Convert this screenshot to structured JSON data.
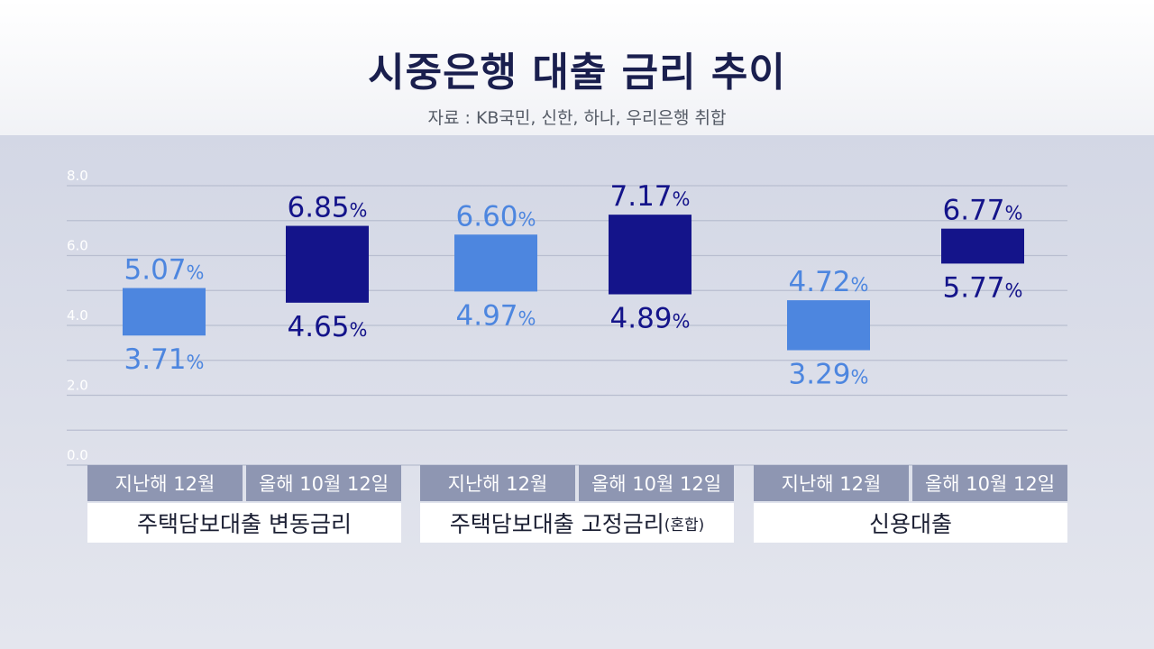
{
  "title": "시중은행 대출 금리 추이",
  "source": "자료 : KB국민, 신한, 하나, 우리은행 취합",
  "colors": {
    "light": "#4d86df",
    "dark": "#14148a"
  },
  "chart_data": {
    "type": "floating-bar",
    "ylim": [
      0,
      8
    ],
    "yticks": [
      "0.0",
      "2.0",
      "4.0",
      "6.0",
      "8.0"
    ],
    "grid": true,
    "groups": [
      {
        "category": "주택담보대출 변동금리",
        "suffix": "",
        "bars": [
          {
            "label": "지난해 12월",
            "low": 3.71,
            "high": 5.07,
            "low_text": "3.71",
            "high_text": "5.07",
            "unit": "%"
          },
          {
            "label": "올해 10월 12일",
            "low": 4.65,
            "high": 6.85,
            "low_text": "4.65",
            "high_text": "6.85",
            "unit": "%"
          }
        ]
      },
      {
        "category": "주택담보대출 고정금리",
        "suffix": "(혼합)",
        "bars": [
          {
            "label": "지난해 12월",
            "low": 4.97,
            "high": 6.6,
            "low_text": "4.97",
            "high_text": "6.60",
            "unit": "%"
          },
          {
            "label": "올해 10월 12일",
            "low": 4.89,
            "high": 7.17,
            "low_text": "4.89",
            "high_text": "7.17",
            "unit": "%"
          }
        ]
      },
      {
        "category": "신용대출",
        "suffix": "",
        "bars": [
          {
            "label": "지난해 12월",
            "low": 3.29,
            "high": 4.72,
            "low_text": "3.29",
            "high_text": "4.72",
            "unit": "%"
          },
          {
            "label": "올해 10월 12일",
            "low": 5.77,
            "high": 6.77,
            "low_text": "5.77",
            "high_text": "6.77",
            "unit": "%"
          }
        ]
      }
    ]
  }
}
